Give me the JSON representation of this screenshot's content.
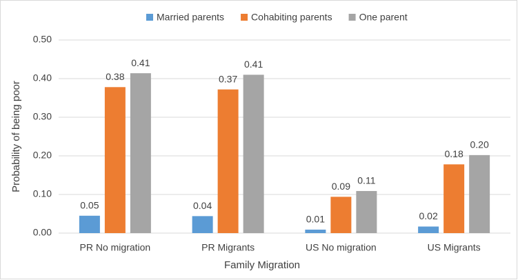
{
  "chart_data": {
    "type": "bar",
    "x_label": "Family Migration",
    "y_label": "Probability of being poor",
    "categories": [
      "PR No migration",
      "PR Migrants",
      "US No migration",
      "US Migrants"
    ],
    "series": [
      {
        "name": "Married parents",
        "color": "#5b9bd5",
        "values": [
          0.045,
          0.044,
          0.009,
          0.017
        ],
        "value_labels": [
          "0.05",
          "0.04",
          "0.01",
          "0.02"
        ]
      },
      {
        "name": "Cohabiting parents",
        "color": "#ed7d31",
        "values": [
          0.378,
          0.372,
          0.094,
          0.178
        ],
        "value_labels": [
          "0.38",
          "0.37",
          "0.09",
          "0.18"
        ]
      },
      {
        "name": "One parent",
        "color": "#a5a5a5",
        "values": [
          0.414,
          0.41,
          0.109,
          0.202
        ],
        "value_labels": [
          "0.41",
          "0.41",
          "0.11",
          "0.20"
        ]
      }
    ],
    "ylim": [
      0,
      0.5
    ],
    "yticks": [
      {
        "value": 0,
        "label": "0.00"
      },
      {
        "value": 0.1,
        "label": "0.10"
      },
      {
        "value": 0.2,
        "label": "0.20"
      },
      {
        "value": 0.3,
        "label": "0.30"
      },
      {
        "value": 0.4,
        "label": "0.40"
      },
      {
        "value": 0.5,
        "label": "0.50"
      }
    ],
    "grid": true,
    "legend": "top"
  }
}
